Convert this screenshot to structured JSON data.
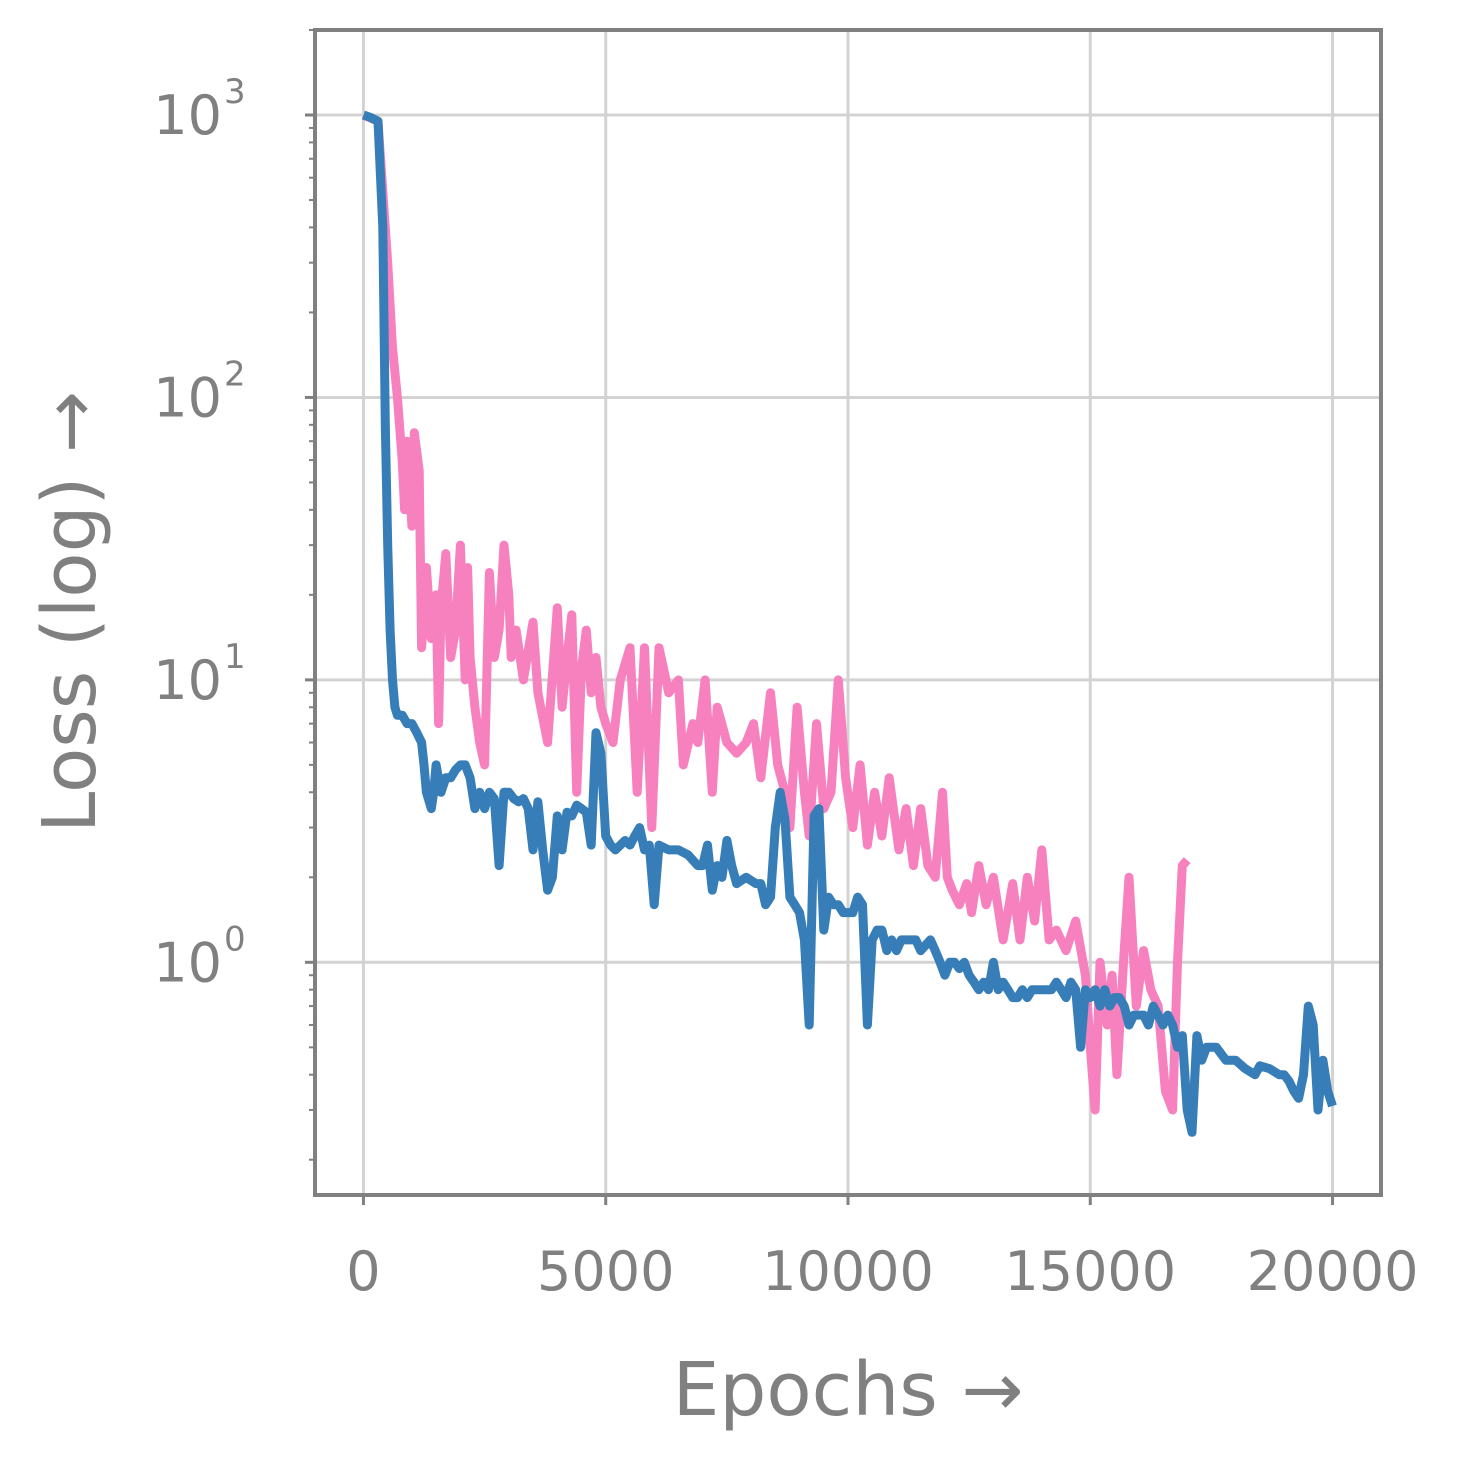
{
  "chart_data": {
    "type": "line",
    "xlabel": "Epochs →",
    "ylabel": "Loss (log) →",
    "xlim": [
      -1000,
      21000
    ],
    "ylim": [
      0.15,
      2000
    ],
    "yscale": "log",
    "grid": true,
    "x_ticks": [
      0,
      5000,
      10000,
      15000,
      20000
    ],
    "x_tick_labels": [
      "0",
      "5000",
      "10000",
      "15000",
      "20000"
    ],
    "y_ticks": [
      1,
      10,
      100,
      1000
    ],
    "y_tick_labels": [
      {
        "base": "10",
        "exp": "0"
      },
      {
        "base": "10",
        "exp": "1"
      },
      {
        "base": "10",
        "exp": "2"
      },
      {
        "base": "10",
        "exp": "3"
      }
    ],
    "series": [
      {
        "color": "#f781bf",
        "points": [
          [
            0,
            1000
          ],
          [
            300,
            950
          ],
          [
            500,
            300
          ],
          [
            600,
            150
          ],
          [
            700,
            100
          ],
          [
            800,
            60
          ],
          [
            850,
            40
          ],
          [
            900,
            70
          ],
          [
            1000,
            35
          ],
          [
            1050,
            75
          ],
          [
            1150,
            55
          ],
          [
            1200,
            13
          ],
          [
            1300,
            25
          ],
          [
            1400,
            14
          ],
          [
            1500,
            20
          ],
          [
            1550,
            7
          ],
          [
            1600,
            18
          ],
          [
            1700,
            28
          ],
          [
            1800,
            12
          ],
          [
            1900,
            15
          ],
          [
            2000,
            30
          ],
          [
            2100,
            10
          ],
          [
            2150,
            25
          ],
          [
            2200,
            12
          ],
          [
            2300,
            8
          ],
          [
            2400,
            6
          ],
          [
            2500,
            5
          ],
          [
            2600,
            24
          ],
          [
            2700,
            12
          ],
          [
            2800,
            15
          ],
          [
            2900,
            30
          ],
          [
            3000,
            20
          ],
          [
            3050,
            12
          ],
          [
            3150,
            15
          ],
          [
            3300,
            10
          ],
          [
            3500,
            16
          ],
          [
            3600,
            9
          ],
          [
            3800,
            6
          ],
          [
            4000,
            18
          ],
          [
            4100,
            8
          ],
          [
            4200,
            12
          ],
          [
            4300,
            17
          ],
          [
            4400,
            4
          ],
          [
            4500,
            11
          ],
          [
            4600,
            15
          ],
          [
            4700,
            9
          ],
          [
            4800,
            12
          ],
          [
            4900,
            8
          ],
          [
            5000,
            7
          ],
          [
            5150,
            6
          ],
          [
            5300,
            10
          ],
          [
            5500,
            13
          ],
          [
            5650,
            4
          ],
          [
            5800,
            13
          ],
          [
            5950,
            3
          ],
          [
            6100,
            13
          ],
          [
            6300,
            9
          ],
          [
            6500,
            10
          ],
          [
            6600,
            5
          ],
          [
            6800,
            7
          ],
          [
            6900,
            6
          ],
          [
            7050,
            10
          ],
          [
            7200,
            4
          ],
          [
            7300,
            8
          ],
          [
            7500,
            6
          ],
          [
            7700,
            5.5
          ],
          [
            7900,
            6
          ],
          [
            8050,
            7
          ],
          [
            8200,
            4.5
          ],
          [
            8400,
            9
          ],
          [
            8550,
            5
          ],
          [
            8700,
            4
          ],
          [
            8800,
            3
          ],
          [
            8950,
            8
          ],
          [
            9100,
            4
          ],
          [
            9200,
            2.8
          ],
          [
            9350,
            7
          ],
          [
            9500,
            3.5
          ],
          [
            9650,
            4
          ],
          [
            9800,
            10
          ],
          [
            9950,
            4.5
          ],
          [
            10100,
            3
          ],
          [
            10250,
            5
          ],
          [
            10400,
            2.6
          ],
          [
            10550,
            4
          ],
          [
            10700,
            2.8
          ],
          [
            10850,
            4.5
          ],
          [
            11050,
            2.5
          ],
          [
            11200,
            3.5
          ],
          [
            11350,
            2.2
          ],
          [
            11500,
            3.5
          ],
          [
            11650,
            2.2
          ],
          [
            11800,
            2
          ],
          [
            11950,
            4
          ],
          [
            12050,
            2
          ],
          [
            12150,
            1.8
          ],
          [
            12300,
            1.6
          ],
          [
            12450,
            1.9
          ],
          [
            12550,
            1.5
          ],
          [
            12700,
            2.2
          ],
          [
            12850,
            1.6
          ],
          [
            13000,
            2
          ],
          [
            13200,
            1.2
          ],
          [
            13400,
            1.9
          ],
          [
            13550,
            1.2
          ],
          [
            13700,
            2
          ],
          [
            13850,
            1.4
          ],
          [
            14000,
            2.5
          ],
          [
            14150,
            1.2
          ],
          [
            14300,
            1.3
          ],
          [
            14500,
            1.1
          ],
          [
            14700,
            1.4
          ],
          [
            14900,
            0.9
          ],
          [
            15000,
            0.5
          ],
          [
            15100,
            0.3
          ],
          [
            15200,
            1.0
          ],
          [
            15350,
            0.6
          ],
          [
            15450,
            0.9
          ],
          [
            15550,
            0.4
          ],
          [
            15700,
            1.1
          ],
          [
            15800,
            2.0
          ],
          [
            15950,
            0.7
          ],
          [
            16100,
            1.1
          ],
          [
            16250,
            0.8
          ],
          [
            16400,
            0.7
          ],
          [
            16550,
            0.35
          ],
          [
            16700,
            0.3
          ],
          [
            16800,
            1.0
          ],
          [
            16900,
            2.2
          ],
          [
            17000,
            2.3
          ]
        ]
      },
      {
        "color": "#377eb8",
        "points": [
          [
            0,
            1000
          ],
          [
            150,
            980
          ],
          [
            300,
            950
          ],
          [
            400,
            400
          ],
          [
            450,
            80
          ],
          [
            500,
            30
          ],
          [
            550,
            15
          ],
          [
            600,
            10
          ],
          [
            650,
            8
          ],
          [
            700,
            7.5
          ],
          [
            800,
            7.5
          ],
          [
            900,
            7
          ],
          [
            1000,
            7
          ],
          [
            1100,
            6.5
          ],
          [
            1200,
            6
          ],
          [
            1250,
            5
          ],
          [
            1300,
            4
          ],
          [
            1400,
            3.5
          ],
          [
            1450,
            4
          ],
          [
            1500,
            5
          ],
          [
            1600,
            4
          ],
          [
            1700,
            4.5
          ],
          [
            1800,
            4.5
          ],
          [
            1900,
            4.8
          ],
          [
            2000,
            5
          ],
          [
            2100,
            5
          ],
          [
            2200,
            4.5
          ],
          [
            2300,
            3.5
          ],
          [
            2400,
            4
          ],
          [
            2500,
            3.5
          ],
          [
            2600,
            4
          ],
          [
            2700,
            3.8
          ],
          [
            2800,
            2.2
          ],
          [
            2900,
            4
          ],
          [
            3000,
            4
          ],
          [
            3100,
            3.8
          ],
          [
            3200,
            3.7
          ],
          [
            3300,
            3.8
          ],
          [
            3400,
            3.5
          ],
          [
            3500,
            2.5
          ],
          [
            3600,
            3.7
          ],
          [
            3700,
            2.5
          ],
          [
            3800,
            1.8
          ],
          [
            3900,
            2
          ],
          [
            4000,
            3.3
          ],
          [
            4100,
            2.5
          ],
          [
            4200,
            3.4
          ],
          [
            4300,
            3.3
          ],
          [
            4400,
            3.6
          ],
          [
            4500,
            3.5
          ],
          [
            4600,
            3.4
          ],
          [
            4700,
            2.6
          ],
          [
            4800,
            6.5
          ],
          [
            4900,
            5.5
          ],
          [
            5000,
            2.8
          ],
          [
            5100,
            2.6
          ],
          [
            5200,
            2.5
          ],
          [
            5300,
            2.6
          ],
          [
            5400,
            2.7
          ],
          [
            5500,
            2.6
          ],
          [
            5600,
            2.8
          ],
          [
            5700,
            3
          ],
          [
            5800,
            2.5
          ],
          [
            5900,
            2.6
          ],
          [
            6000,
            1.6
          ],
          [
            6100,
            2.6
          ],
          [
            6300,
            2.5
          ],
          [
            6500,
            2.5
          ],
          [
            6700,
            2.4
          ],
          [
            6900,
            2.2
          ],
          [
            7000,
            2.2
          ],
          [
            7100,
            2.6
          ],
          [
            7200,
            1.8
          ],
          [
            7300,
            2.2
          ],
          [
            7400,
            2
          ],
          [
            7500,
            2.7
          ],
          [
            7600,
            2.2
          ],
          [
            7700,
            1.9
          ],
          [
            7900,
            2
          ],
          [
            8100,
            1.9
          ],
          [
            8200,
            1.9
          ],
          [
            8300,
            1.6
          ],
          [
            8400,
            1.7
          ],
          [
            8500,
            3
          ],
          [
            8600,
            4
          ],
          [
            8700,
            3.2
          ],
          [
            8800,
            1.7
          ],
          [
            8900,
            1.6
          ],
          [
            9000,
            1.5
          ],
          [
            9100,
            1.2
          ],
          [
            9200,
            0.6
          ],
          [
            9300,
            3.3
          ],
          [
            9400,
            3.5
          ],
          [
            9500,
            1.3
          ],
          [
            9600,
            1.7
          ],
          [
            9700,
            1.6
          ],
          [
            9800,
            1.6
          ],
          [
            9900,
            1.5
          ],
          [
            10000,
            1.5
          ],
          [
            10100,
            1.5
          ],
          [
            10200,
            1.7
          ],
          [
            10300,
            1.6
          ],
          [
            10400,
            0.6
          ],
          [
            10500,
            1.2
          ],
          [
            10600,
            1.3
          ],
          [
            10700,
            1.3
          ],
          [
            10800,
            1.1
          ],
          [
            10900,
            1.2
          ],
          [
            11000,
            1.1
          ],
          [
            11100,
            1.2
          ],
          [
            11200,
            1.2
          ],
          [
            11300,
            1.2
          ],
          [
            11400,
            1.2
          ],
          [
            11500,
            1.1
          ],
          [
            11700,
            1.2
          ],
          [
            11800,
            1.1
          ],
          [
            11900,
            1.0
          ],
          [
            12000,
            0.9
          ],
          [
            12100,
            1.0
          ],
          [
            12200,
            1.0
          ],
          [
            12300,
            0.95
          ],
          [
            12400,
            1.0
          ],
          [
            12500,
            0.9
          ],
          [
            12600,
            0.85
          ],
          [
            12700,
            0.8
          ],
          [
            12800,
            0.85
          ],
          [
            12900,
            0.8
          ],
          [
            13000,
            1.0
          ],
          [
            13100,
            0.8
          ],
          [
            13200,
            0.85
          ],
          [
            13300,
            0.8
          ],
          [
            13400,
            0.75
          ],
          [
            13500,
            0.75
          ],
          [
            13600,
            0.8
          ],
          [
            13700,
            0.75
          ],
          [
            13800,
            0.8
          ],
          [
            13900,
            0.8
          ],
          [
            14000,
            0.8
          ],
          [
            14100,
            0.8
          ],
          [
            14200,
            0.8
          ],
          [
            14300,
            0.85
          ],
          [
            14400,
            0.8
          ],
          [
            14500,
            0.75
          ],
          [
            14600,
            0.85
          ],
          [
            14700,
            0.8
          ],
          [
            14800,
            0.5
          ],
          [
            14900,
            0.8
          ],
          [
            15000,
            0.75
          ],
          [
            15100,
            0.8
          ],
          [
            15200,
            0.7
          ],
          [
            15300,
            0.8
          ],
          [
            15400,
            0.7
          ],
          [
            15500,
            0.75
          ],
          [
            15600,
            0.75
          ],
          [
            15700,
            0.7
          ],
          [
            15800,
            0.6
          ],
          [
            15900,
            0.65
          ],
          [
            16000,
            0.65
          ],
          [
            16100,
            0.65
          ],
          [
            16200,
            0.6
          ],
          [
            16300,
            0.7
          ],
          [
            16400,
            0.65
          ],
          [
            16500,
            0.6
          ],
          [
            16600,
            0.65
          ],
          [
            16700,
            0.6
          ],
          [
            16800,
            0.5
          ],
          [
            16900,
            0.55
          ],
          [
            17000,
            0.3
          ],
          [
            17100,
            0.25
          ],
          [
            17200,
            0.55
          ],
          [
            17300,
            0.45
          ],
          [
            17400,
            0.5
          ],
          [
            17500,
            0.5
          ],
          [
            17600,
            0.5
          ],
          [
            17800,
            0.45
          ],
          [
            18000,
            0.45
          ],
          [
            18200,
            0.42
          ],
          [
            18400,
            0.4
          ],
          [
            18500,
            0.43
          ],
          [
            18700,
            0.42
          ],
          [
            18900,
            0.4
          ],
          [
            19000,
            0.4
          ],
          [
            19100,
            0.38
          ],
          [
            19200,
            0.35
          ],
          [
            19300,
            0.33
          ],
          [
            19400,
            0.4
          ],
          [
            19500,
            0.7
          ],
          [
            19600,
            0.6
          ],
          [
            19700,
            0.3
          ],
          [
            19800,
            0.45
          ],
          [
            19900,
            0.35
          ],
          [
            20000,
            0.31
          ]
        ]
      }
    ]
  }
}
